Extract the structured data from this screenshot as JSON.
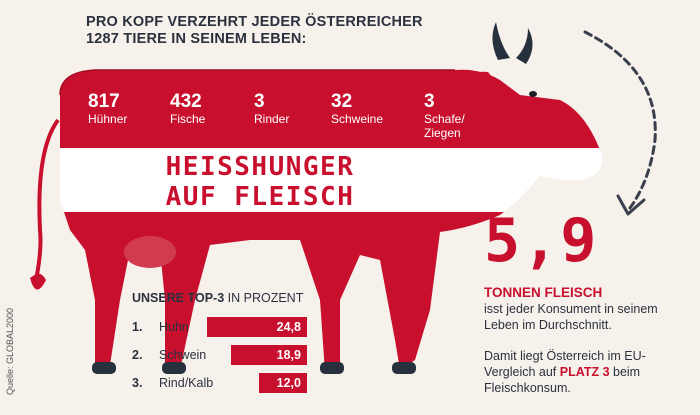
{
  "headline": {
    "line1": "PRO KOPF VERZEHRT JEDER ÖSTERREICHER",
    "line2": "1287 TIERE IN SEINEM LEBEN:"
  },
  "animals": [
    {
      "count": "817",
      "label1": "Hühner",
      "label2": ""
    },
    {
      "count": "432",
      "label1": "Fische",
      "label2": ""
    },
    {
      "count": "3",
      "label1": "Rinder",
      "label2": ""
    },
    {
      "count": "32",
      "label1": "Schweine",
      "label2": ""
    },
    {
      "count": "3",
      "label1": "Schafe/",
      "label2": "Ziegen"
    }
  ],
  "banner": {
    "line1": "HEISSHUNGER",
    "line2": "AUF FLEISCH"
  },
  "top3": {
    "title_bold": "UNSERE TOP-3",
    "title_rest": " IN PROZENT",
    "rows": [
      {
        "rank": "1.",
        "name": "Huhn",
        "value": 24.8,
        "display": "24,8"
      },
      {
        "rank": "2.",
        "name": "Schwein",
        "value": 18.9,
        "display": "18,9"
      },
      {
        "rank": "3.",
        "name": "Rind/Kalb",
        "value": 12.0,
        "display": "12,0"
      }
    ]
  },
  "big_number": "5,9",
  "tonnen": {
    "highlight": "TONNEN FLEISCH",
    "text": "isst jeder Konsument in seinem Leben im Durchschnitt."
  },
  "platz": {
    "text_before": "Damit liegt Österreich im EU-Vergleich auf ",
    "highlight": "PLATZ 3",
    "text_after": " beim Fleischkonsum."
  },
  "source": "Quelle: GLOBAL2000",
  "colors": {
    "red": "#c8102e",
    "white": "#ffffff",
    "navy": "#2c3140",
    "background": "#f6f1ea"
  }
}
